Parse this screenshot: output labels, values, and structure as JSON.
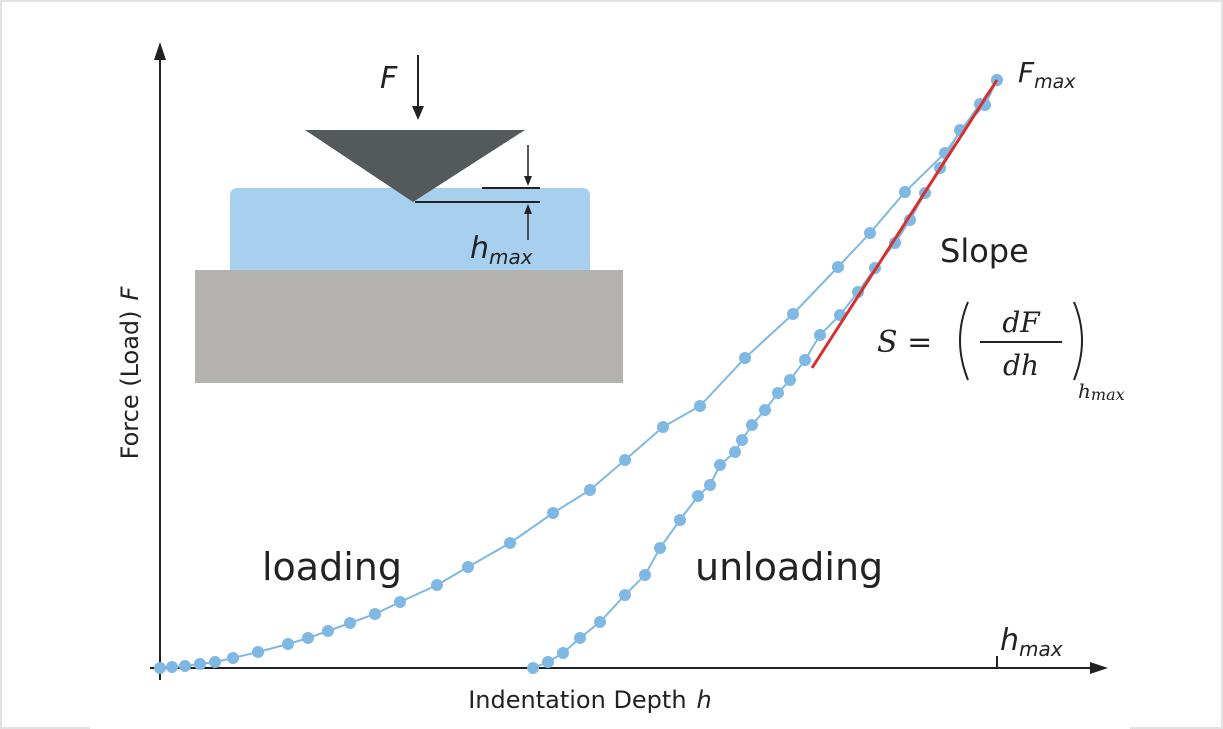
{
  "axes": {
    "y_label": "Force (Load)",
    "y_symbol": "F",
    "x_label": "Indentation Depth",
    "x_symbol": "h",
    "x_end_symbol": "h",
    "x_end_subscript": "max"
  },
  "inset": {
    "force_symbol": "F",
    "depth_symbol": "h",
    "depth_subscript": "max"
  },
  "curves": {
    "loading": "loading",
    "unloading": "unloading",
    "peak_symbol": "F",
    "peak_subscript": "max"
  },
  "slope": {
    "title": "Slope",
    "lhs": "S =",
    "numerator": "dF",
    "denominator": "dh",
    "subscript": "h",
    "subscript_sub": "max"
  }
}
